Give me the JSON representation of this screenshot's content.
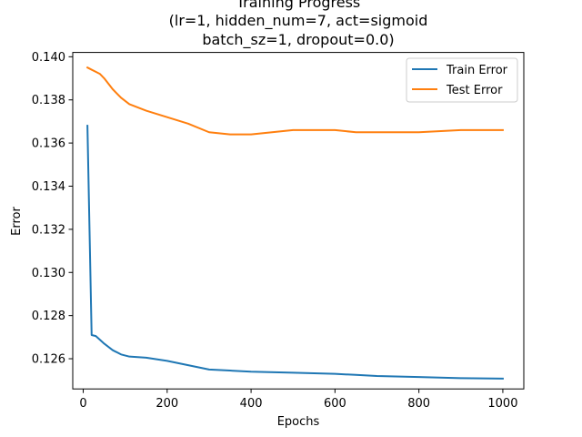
{
  "chart_data": {
    "type": "line",
    "title_lines": [
      "Training Progress",
      "(lr=1, hidden_num=7, act=sigmoid",
      "batch_sz=1, dropout=0.0)"
    ],
    "xlabel": "Epochs",
    "ylabel": "Error",
    "xlim": [
      -25,
      1050
    ],
    "ylim": [
      0.1246,
      0.1402
    ],
    "xticks": [
      0,
      200,
      400,
      600,
      800,
      1000
    ],
    "xtick_labels": [
      "0",
      "200",
      "400",
      "600",
      "800",
      "1000"
    ],
    "yticks": [
      0.126,
      0.128,
      0.13,
      0.132,
      0.134,
      0.136,
      0.138,
      0.14
    ],
    "ytick_labels": [
      "0.126",
      "0.128",
      "0.130",
      "0.132",
      "0.134",
      "0.136",
      "0.138",
      "0.140"
    ],
    "grid": false,
    "legend_position": "top-right",
    "series": [
      {
        "name": "Train Error",
        "color": "#1f77b4",
        "x": [
          10,
          20,
          30,
          50,
          70,
          90,
          110,
          150,
          200,
          250,
          300,
          350,
          400,
          500,
          600,
          650,
          700,
          800,
          900,
          1000
        ],
        "values": [
          0.1368,
          0.1271,
          0.12705,
          0.1267,
          0.1264,
          0.1262,
          0.1261,
          0.12605,
          0.1259,
          0.1257,
          0.1255,
          0.12545,
          0.1254,
          0.12535,
          0.1253,
          0.12525,
          0.1252,
          0.12515,
          0.1251,
          0.12508
        ]
      },
      {
        "name": "Test Error",
        "color": "#ff7f0e",
        "x": [
          10,
          20,
          30,
          40,
          50,
          70,
          90,
          110,
          150,
          200,
          250,
          300,
          350,
          400,
          500,
          600,
          650,
          700,
          800,
          900,
          1000
        ],
        "values": [
          0.1395,
          0.1394,
          0.1393,
          0.1392,
          0.139,
          0.1385,
          0.1381,
          0.1378,
          0.1375,
          0.1372,
          0.1369,
          0.1365,
          0.1364,
          0.1364,
          0.1366,
          0.1366,
          0.1365,
          0.1365,
          0.1365,
          0.1366,
          0.1366
        ]
      }
    ]
  }
}
